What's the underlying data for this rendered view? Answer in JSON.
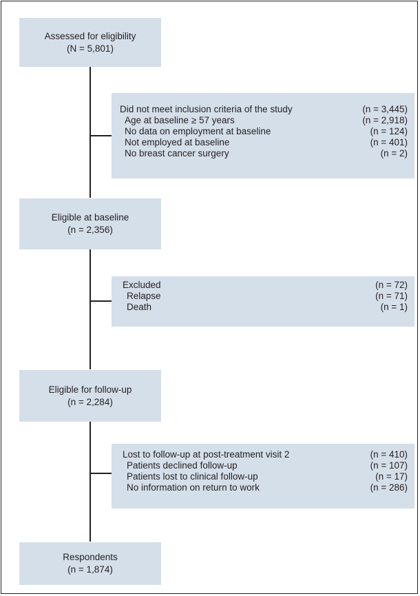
{
  "steps": {
    "assessed": {
      "title": "Assessed for eligibility",
      "count": "(N = 5,801)"
    },
    "eligible_baseline": {
      "title": "Eligible at baseline",
      "count": "(n = 2,356)"
    },
    "eligible_followup": {
      "title": "Eligible for follow-up",
      "count": "(n = 2,284)"
    },
    "respondents": {
      "title": "Respondents",
      "count": "(n = 1,874)"
    }
  },
  "exclusions": {
    "inclusion": {
      "rows": [
        {
          "label": "Did not meet inclusion criteria of the study",
          "count": "(n = 3,445)"
        },
        {
          "label": "Age at baseline ≥ 57 years",
          "count": "(n = 2,918)"
        },
        {
          "label": "No data on employment at baseline",
          "count": "(n = 124)"
        },
        {
          "label": "Not employed at baseline",
          "count": "(n = 401)"
        },
        {
          "label": "No breast cancer surgery",
          "count": "(n = 2)"
        }
      ]
    },
    "excluded": {
      "rows": [
        {
          "label": "Excluded",
          "count": "(n = 72)"
        },
        {
          "label": "Relapse",
          "count": "(n = 71)"
        },
        {
          "label": "Death",
          "count": "(n = 1)"
        }
      ]
    },
    "lost": {
      "rows": [
        {
          "label": "Lost to follow-up at post-treatment visit 2",
          "count": "(n = 410)"
        },
        {
          "label": "Patients declined follow-up",
          "count": "(n = 107)"
        },
        {
          "label": "Patients lost to clinical follow-up",
          "count": "(n = 17)"
        },
        {
          "label": "No information on return to work",
          "count": "(n = 286)"
        }
      ]
    }
  },
  "colors": {
    "box_fill": "#d5dfea",
    "line": "#231f20"
  }
}
